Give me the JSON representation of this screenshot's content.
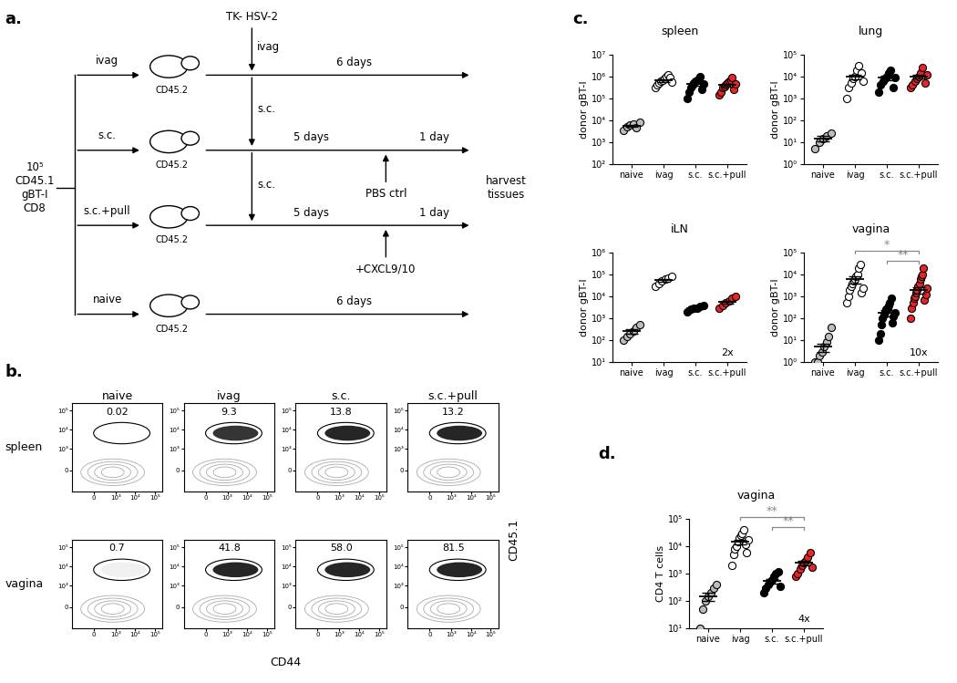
{
  "panel_labels": [
    "a.",
    "b.",
    "c.",
    "d."
  ],
  "diagram": {
    "cells": "10⁵\nCD45.1\ngBT-I\nCD8",
    "infection": "TK- HSV-2",
    "harvest": "harvest\ntissues",
    "rows": [
      {
        "group": "ivag",
        "mouse": "CD45.2",
        "route": "ivag",
        "segments": [
          "6 days"
        ]
      },
      {
        "group": "s.c.",
        "mouse": "CD45.2",
        "route": "s.c.",
        "segments": [
          "5 days",
          "1 day"
        ],
        "treatment": "PBS ctrl"
      },
      {
        "group": "s.c.+pull",
        "mouse": "CD45.2",
        "route": "s.c.",
        "segments": [
          "5 days",
          "1 day"
        ],
        "treatment": "+CXCL9/10"
      },
      {
        "group": "naive",
        "mouse": "CD45.2",
        "segments": [
          "6 days"
        ]
      }
    ]
  },
  "flow": {
    "type": "scatter",
    "log": true,
    "xlabel": "CD44",
    "ylabel": "CD45.1",
    "columns": [
      "naive",
      "ivag",
      "s.c.",
      "s.c.+pull"
    ],
    "rows": [
      {
        "tissue": "spleen",
        "gate_percentages": [
          0.02,
          9.3,
          13.8,
          13.2
        ]
      },
      {
        "tissue": "vagina",
        "gate_percentages": [
          0.7,
          41.8,
          58.0,
          81.5
        ]
      }
    ],
    "xlim": [
      -1000,
      250000
    ],
    "ylim": [
      -1000,
      250000
    ],
    "xticks": [
      0,
      {
        "value": 1000,
        "label": "10³"
      },
      {
        "value": 10000,
        "label": "10⁴"
      },
      {
        "value": 100000,
        "label": "10⁵"
      }
    ],
    "yticks": [
      0,
      {
        "value": 1000,
        "label": "10³"
      },
      {
        "value": 10000,
        "label": "10⁴"
      },
      {
        "value": 100000,
        "label": "10⁵"
      }
    ]
  },
  "chart_data": [
    {
      "type": "scatter",
      "title": "spleen",
      "ylabel": "donor gBT-I",
      "log": "y",
      "grid": false,
      "marker": "circle",
      "categories": [
        "naive",
        "ivag",
        "s.c.",
        "s.c.+pull"
      ],
      "colors": [
        "#bdbdbd",
        "#ffffff",
        "#000000",
        "#e8262a"
      ],
      "values": [
        [
          3500,
          5000,
          6000,
          7000,
          4500,
          8000
        ],
        [
          300000,
          400000,
          500000,
          600000,
          700000,
          800000,
          1000000,
          1200000,
          900000,
          550000
        ],
        [
          100000,
          200000,
          300000,
          400000,
          500000,
          600000,
          700000,
          800000,
          1000000,
          250000,
          450000
        ],
        [
          150000,
          200000,
          300000,
          350000,
          400000,
          500000,
          600000,
          700000,
          900000,
          250000,
          450000
        ]
      ],
      "means": [
        5500,
        650000,
        450000,
        420000
      ],
      "errors": [
        600,
        80000,
        70000,
        60000
      ],
      "ylim": [
        100,
        10000000
      ],
      "yticks": [
        {
          "value": 100,
          "label": "10²"
        },
        {
          "value": 1000,
          "label": "10³"
        },
        {
          "value": 10000,
          "label": "10⁴"
        },
        {
          "value": 100000,
          "label": "10⁵"
        },
        {
          "value": 1000000,
          "label": "10⁶"
        },
        {
          "value": 10000000,
          "label": "10⁷"
        }
      ]
    },
    {
      "type": "scatter",
      "title": "lung",
      "ylabel": "donor gBT-I",
      "log": "y",
      "grid": false,
      "marker": "circle",
      "categories": [
        "naive",
        "ivag",
        "s.c.",
        "s.c.+pull"
      ],
      "colors": [
        "#bdbdbd",
        "#ffffff",
        "#000000",
        "#e8262a"
      ],
      "values": [
        [
          5,
          10,
          15,
          20,
          25
        ],
        [
          1000,
          3000,
          5000,
          8000,
          10000,
          20000,
          30000,
          15000,
          6000
        ],
        [
          2000,
          4000,
          6000,
          8000,
          10000,
          15000,
          20000,
          3000,
          9000
        ],
        [
          3000,
          4000,
          6000,
          8000,
          10000,
          15000,
          25000,
          5000,
          12000
        ]
      ],
      "means": [
        15,
        10000,
        9000,
        10000
      ],
      "errors": [
        4,
        2500,
        2000,
        2200
      ],
      "ylim": [
        1,
        100000
      ],
      "yticks": [
        {
          "value": 1,
          "label": "10⁰"
        },
        {
          "value": 10,
          "label": "10¹"
        },
        {
          "value": 100,
          "label": "10²"
        },
        {
          "value": 1000,
          "label": "10³"
        },
        {
          "value": 10000,
          "label": "10⁴"
        },
        {
          "value": 100000,
          "label": "10⁵"
        }
      ]
    },
    {
      "type": "scatter",
      "title": "iLN",
      "ylabel": "donor gBT-I",
      "log": "y",
      "grid": false,
      "marker": "circle",
      "categories": [
        "naive",
        "ivag",
        "s.c.",
        "s.c.+pull"
      ],
      "colors": [
        "#bdbdbd",
        "#ffffff",
        "#000000",
        "#e8262a"
      ],
      "values": [
        [
          100,
          150,
          200,
          250,
          400,
          500
        ],
        [
          30000,
          40000,
          50000,
          60000,
          70000,
          80000
        ],
        [
          2000,
          2500,
          3000,
          3000,
          3500,
          4000
        ],
        [
          3000,
          4000,
          5000,
          6000,
          8000,
          10000
        ]
      ],
      "means": [
        250,
        55000,
        3000,
        5500
      ],
      "errors": [
        60,
        7000,
        300,
        1000
      ],
      "ylim": [
        10,
        1000000
      ],
      "yticks": [
        {
          "value": 10,
          "label": "10¹"
        },
        {
          "value": 100,
          "label": "10²"
        },
        {
          "value": 1000,
          "label": "10³"
        },
        {
          "value": 10000,
          "label": "10⁴"
        },
        {
          "value": 100000,
          "label": "10⁵"
        },
        {
          "value": 1000000,
          "label": "10⁶"
        }
      ],
      "annotations": [
        {
          "text": "2x",
          "category": "s.c.+pull"
        }
      ]
    },
    {
      "type": "scatter",
      "title": "vagina",
      "ylabel": "donor gBT-I",
      "log": "y",
      "grid": false,
      "marker": "circle",
      "categories": [
        "naive",
        "ivag",
        "s.c.",
        "s.c.+pull"
      ],
      "colors": [
        "#bdbdbd",
        "#ffffff",
        "#000000",
        "#e8262a"
      ],
      "values": [
        [
          1,
          1,
          2,
          3,
          5,
          8,
          15,
          40
        ],
        [
          500,
          1000,
          2000,
          3000,
          4000,
          5000,
          6000,
          8000,
          10000,
          20000,
          30000,
          1500,
          2500
        ],
        [
          10,
          20,
          50,
          100,
          150,
          200,
          250,
          300,
          400,
          500,
          800,
          60,
          120,
          180
        ],
        [
          100,
          300,
          500,
          800,
          1000,
          1500,
          2000,
          3000,
          4000,
          6000,
          8000,
          10000,
          20000,
          700,
          1200,
          2500
        ]
      ],
      "means": [
        5,
        6000,
        180,
        2000
      ],
      "errors": [
        2,
        2200,
        60,
        700
      ],
      "ylim": [
        1,
        100000
      ],
      "yticks": [
        {
          "value": 1,
          "label": "10⁰"
        },
        {
          "value": 10,
          "label": "10¹"
        },
        {
          "value": 100,
          "label": "10²"
        },
        {
          "value": 1000,
          "label": "10³"
        },
        {
          "value": 10000,
          "label": "10⁴"
        },
        {
          "value": 100000,
          "label": "10⁵"
        }
      ],
      "significance": [
        {
          "from": "ivag",
          "to": "s.c.+pull",
          "label": "*"
        },
        {
          "from": "s.c.",
          "to": "s.c.+pull",
          "label": "**"
        }
      ],
      "annotations": [
        {
          "text": "10x",
          "category": "s.c.+pull"
        }
      ]
    },
    {
      "type": "scatter",
      "title": "vagina",
      "ylabel": "CD4 T cells",
      "log": "y",
      "grid": false,
      "marker": "circle",
      "categories": [
        "naive",
        "ivag",
        "s.c.",
        "s.c.+pull"
      ],
      "colors": [
        "#bdbdbd",
        "#ffffff",
        "#000000",
        "#e8262a"
      ],
      "values": [
        [
          10,
          50,
          100,
          150,
          200,
          300,
          400
        ],
        [
          2000,
          5000,
          8000,
          10000,
          15000,
          20000,
          25000,
          30000,
          40000,
          12000,
          6000,
          18000
        ],
        [
          200,
          300,
          400,
          500,
          600,
          800,
          1000,
          1200,
          350
        ],
        [
          800,
          1000,
          1500,
          2000,
          2500,
          3000,
          4000,
          6000,
          1800
        ]
      ],
      "means": [
        150,
        15000,
        550,
        2500
      ],
      "errors": [
        50,
        3000,
        100,
        550
      ],
      "ylim": [
        10,
        100000
      ],
      "yticks": [
        {
          "value": 10,
          "label": "10¹"
        },
        {
          "value": 100,
          "label": "10²"
        },
        {
          "value": 1000,
          "label": "10³"
        },
        {
          "value": 10000,
          "label": "10⁴"
        },
        {
          "value": 100000,
          "label": "10⁵"
        }
      ],
      "significance": [
        {
          "from": "ivag",
          "to": "s.c.+pull",
          "label": "**"
        },
        {
          "from": "s.c.",
          "to": "s.c.+pull",
          "label": "**"
        }
      ],
      "annotations": [
        {
          "text": "4x",
          "category": "s.c.+pull"
        }
      ]
    }
  ]
}
